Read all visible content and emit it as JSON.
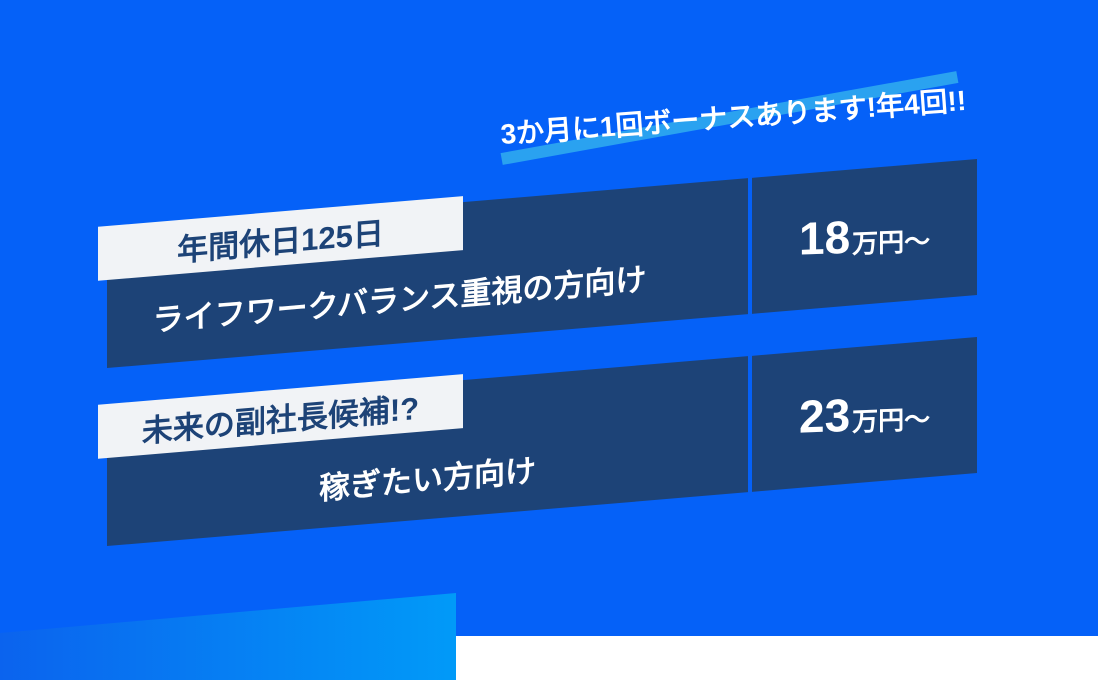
{
  "banner": {
    "text": "3か月に1回ボーナスあります!年4回!!"
  },
  "cards": [
    {
      "badge": "年間休日125日",
      "description": "ライフワークバランス重視の方向け",
      "salary_number": "18",
      "salary_unit": "万円〜"
    },
    {
      "badge": "未来の副社長候補!?",
      "description": "稼ぎたい方向け",
      "salary_number": "23",
      "salary_unit": "万円〜"
    }
  ],
  "colors": {
    "background_blue": "#0561f8",
    "card_navy": "#1d4377",
    "badge_background": "#f1f3f6",
    "badge_text": "#1d4377",
    "banner_stripe_cyan": "#2aa2f0",
    "accent_band_gradient_start": "#0b63ee",
    "accent_band_gradient_end": "#019af8",
    "text_white": "#ffffff",
    "page_edge_white": "#ffffff"
  }
}
